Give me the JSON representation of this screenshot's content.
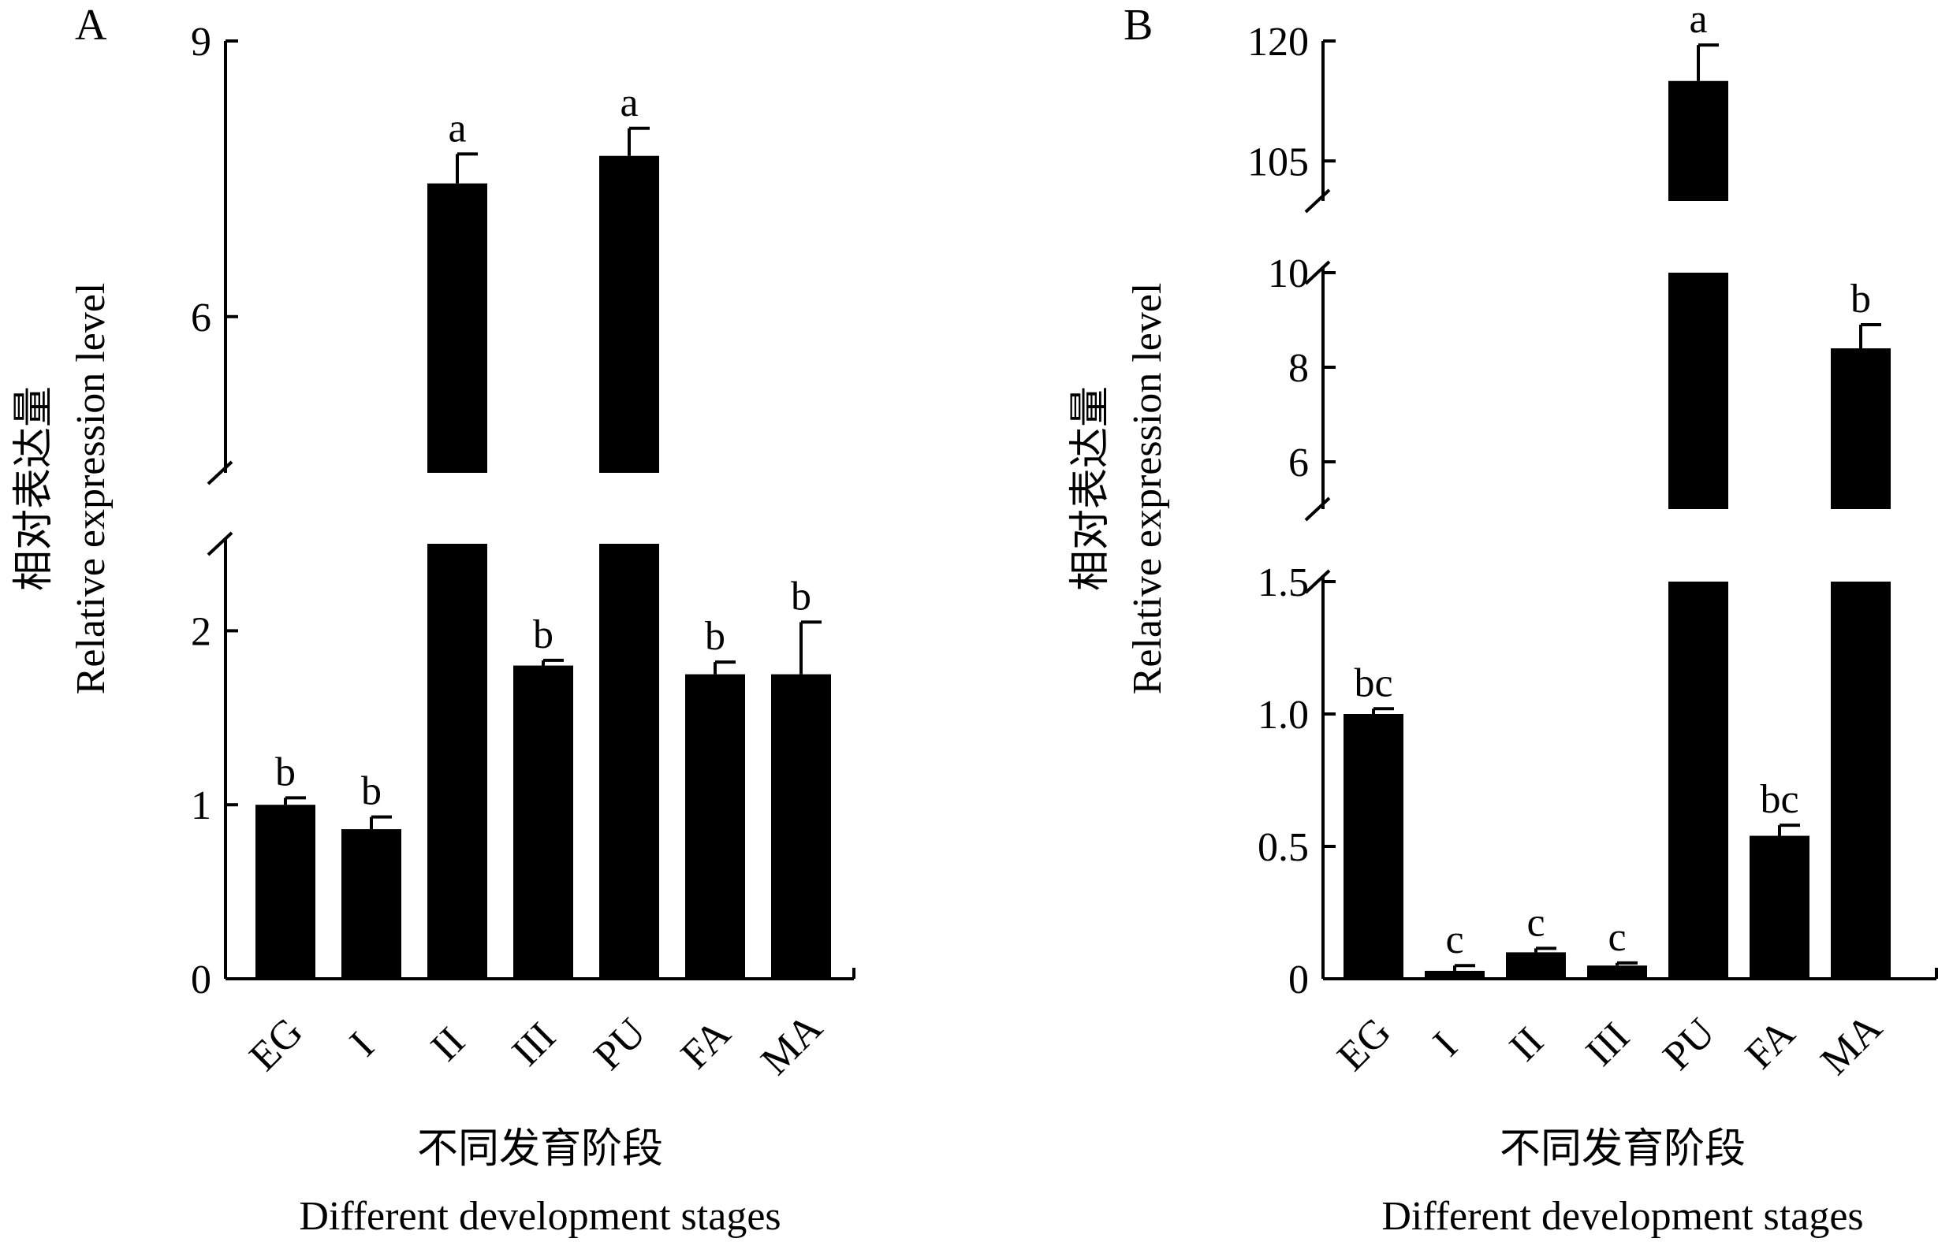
{
  "chart_data": [
    {
      "panel": "A",
      "type": "bar",
      "categories": [
        "EG",
        "I",
        "II",
        "III",
        "PU",
        "FA",
        "MA"
      ],
      "values": [
        1.0,
        0.86,
        7.45,
        1.8,
        7.75,
        1.75,
        1.75
      ],
      "errors": [
        0.04,
        0.07,
        0.32,
        0.03,
        0.3,
        0.07,
        0.3
      ],
      "significance": [
        "b",
        "b",
        "a",
        "b",
        "a",
        "b",
        "b"
      ],
      "ylabel_cn": "相对表达量",
      "ylabel_en": "Relative expression level",
      "xlabel_cn": "不同发育阶段",
      "xlabel_en": "Different development stages",
      "axis_break": {
        "lower_range": [
          0,
          2.5
        ],
        "upper_range": [
          4.3,
          9
        ]
      },
      "yticks_lower": [
        "0",
        "1",
        "2"
      ],
      "yticks_upper": [
        "6",
        "9"
      ],
      "grid": false,
      "legend": "none"
    },
    {
      "panel": "B",
      "type": "bar",
      "categories": [
        "EG",
        "I",
        "II",
        "III",
        "PU",
        "FA",
        "MA"
      ],
      "values": [
        1.0,
        0.03,
        0.1,
        0.05,
        115,
        0.54,
        8.4
      ],
      "errors": [
        0.02,
        0.02,
        0.015,
        0.01,
        4.5,
        0.04,
        0.5
      ],
      "significance": [
        "bc",
        "c",
        "c",
        "c",
        "a",
        "bc",
        "b"
      ],
      "ylabel_cn": "相对表达量",
      "ylabel_en": "Relative expression level",
      "xlabel_cn": "不同发育阶段",
      "xlabel_en": "Different development stages",
      "axis_break": {
        "lower_range": [
          0,
          1.5
        ],
        "middle_range": [
          5,
          10
        ],
        "upper_range": [
          100,
          120
        ]
      },
      "yticks_lower": [
        "0",
        "0.5",
        "1.0",
        "1.5"
      ],
      "yticks_middle": [
        "6",
        "8",
        "10"
      ],
      "yticks_upper": [
        "105",
        "120"
      ],
      "grid": false,
      "legend": "none"
    }
  ]
}
